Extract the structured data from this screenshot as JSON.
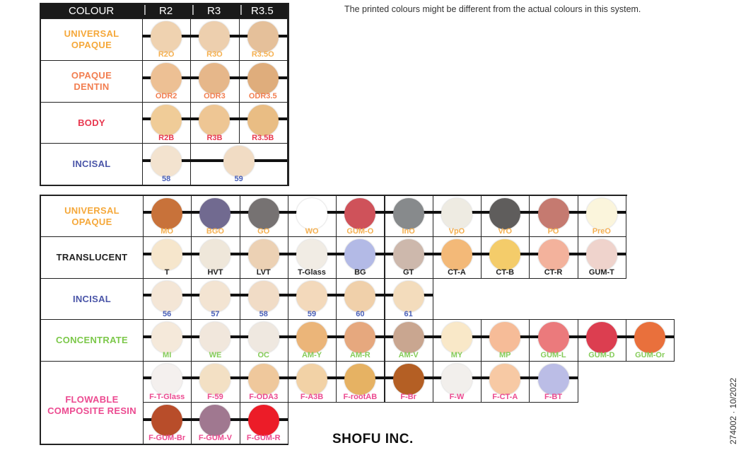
{
  "notice": "The printed colours might be different from the actual colours in this system.",
  "company": "SHOFU INC.",
  "doc_code": "274002 · 10/2022",
  "top_table": {
    "header": {
      "colour": "COLOUR",
      "cols": [
        "R2",
        "R3",
        "R3.5"
      ]
    },
    "rows": [
      {
        "label": "UNIVERSAL\nOPAQUE",
        "label_color": "#f5a83a",
        "code_color": "#f5b050",
        "swatches": [
          {
            "code": "R2O",
            "color": "#efd2b0"
          },
          {
            "code": "R3O",
            "color": "#edcfae"
          },
          {
            "code": "R3.5O",
            "color": "#e5c09a"
          }
        ]
      },
      {
        "label": "OPAQUE\nDENTIN",
        "label_color": "#f27e50",
        "code_color": "#f27e50",
        "swatches": [
          {
            "code": "ODR2",
            "color": "#edc094"
          },
          {
            "code": "ODR3",
            "color": "#e6b78a"
          },
          {
            "code": "ODR3.5",
            "color": "#dfad7c"
          }
        ]
      },
      {
        "label": "BODY",
        "label_color": "#e8384f",
        "code_color": "#e8384f",
        "swatches": [
          {
            "code": "R2B",
            "color": "#f0cc98"
          },
          {
            "code": "R3B",
            "color": "#eec694"
          },
          {
            "code": "R3.5B",
            "color": "#e9bd84"
          }
        ]
      },
      {
        "label": "INCISAL",
        "label_color": "#4a55a8",
        "code_color": "#4a60b8",
        "swatches": [
          {
            "code": "58",
            "color": "#f3e3cf"
          },
          {
            "code": "59",
            "color": "#f1dcc4"
          }
        ]
      }
    ]
  },
  "bottom_table": {
    "rows": [
      {
        "label": "UNIVERSAL\nOPAQUE",
        "label_color": "#f5a83a",
        "code_color": "#f5b050",
        "swatches": [
          {
            "code": "MO",
            "color": "#c8723a"
          },
          {
            "code": "BGO",
            "color": "#716a90"
          },
          {
            "code": "GO",
            "color": "#767272"
          },
          {
            "code": "WO",
            "color": "#ffffff"
          },
          {
            "code": "GUM-O",
            "color": "#cf525a"
          },
          {
            "code": "InO",
            "color": "#878a8c"
          },
          {
            "code": "VpO",
            "color": "#eeebe2"
          },
          {
            "code": "VrO",
            "color": "#5f5d5c"
          },
          {
            "code": "PO",
            "color": "#c57a70"
          },
          {
            "code": "PreO",
            "color": "#fbf5dc"
          }
        ]
      },
      {
        "label": "TRANSLUCENT",
        "label_color": "#222222",
        "code_color": "#222222",
        "swatches": [
          {
            "code": "T",
            "color": "#f6e6cc"
          },
          {
            "code": "HVT",
            "color": "#efe7da"
          },
          {
            "code": "LVT",
            "color": "#ecd1b4"
          },
          {
            "code": "T-Glass",
            "color": "#f1ece4"
          },
          {
            "code": "BG",
            "color": "#b3bae6"
          },
          {
            "code": "GT",
            "color": "#cdb8ac"
          },
          {
            "code": "CT-A",
            "color": "#f3b978"
          },
          {
            "code": "CT-B",
            "color": "#f4cc6a"
          },
          {
            "code": "CT-R",
            "color": "#f3b29c"
          },
          {
            "code": "GUM-T",
            "color": "#efd3cc"
          }
        ]
      },
      {
        "label": "INCISAL",
        "label_color": "#4a55a8",
        "code_color": "#4a60b8",
        "swatches": [
          {
            "code": "56",
            "color": "#f4e6d6"
          },
          {
            "code": "57",
            "color": "#f3e4d2"
          },
          {
            "code": "58",
            "color": "#f1dcc6"
          },
          {
            "code": "59",
            "color": "#f3d9bb"
          },
          {
            "code": "60",
            "color": "#f0d0aa"
          },
          {
            "code": "61",
            "color": "#f3dcbc"
          }
        ]
      },
      {
        "label": "CONCENTRATE",
        "label_color": "#7cc84a",
        "code_color": "#86cc5a",
        "swatches": [
          {
            "code": "MI",
            "color": "#f5e9da"
          },
          {
            "code": "WE",
            "color": "#f1e7dc"
          },
          {
            "code": "OC",
            "color": "#efe8e0"
          },
          {
            "code": "AM-Y",
            "color": "#ebb579"
          },
          {
            "code": "AM-R",
            "color": "#e6a87e"
          },
          {
            "code": "AM-V",
            "color": "#c9a690"
          },
          {
            "code": "MY",
            "color": "#f9e8c8"
          },
          {
            "code": "MP",
            "color": "#f6bc98"
          },
          {
            "code": "GUM-L",
            "color": "#eb7a7c"
          },
          {
            "code": "GUM-D",
            "color": "#dc3e50"
          },
          {
            "code": "GUM-Or",
            "color": "#e9703c"
          }
        ]
      },
      {
        "label": "FLOWABLE\nCOMPOSITE RESIN",
        "label_color": "#ec4a90",
        "code_color": "#ec4a90",
        "swatches": [
          {
            "code": "F-T-Glass",
            "color": "#f4f0ee"
          },
          {
            "code": "F-59",
            "color": "#f3e0c4"
          },
          {
            "code": "F-ODA3",
            "color": "#efc89c"
          },
          {
            "code": "F-A3B",
            "color": "#f2d2a6"
          },
          {
            "code": "F-rootAB",
            "color": "#e6b263"
          },
          {
            "code": "F-Br",
            "color": "#b45f24"
          },
          {
            "code": "F-W",
            "color": "#f2efec"
          },
          {
            "code": "F-CT-A",
            "color": "#f7c9a4"
          },
          {
            "code": "F-BT",
            "color": "#bbbde6"
          }
        ]
      },
      {
        "label": "",
        "label_color": "#ec4a90",
        "code_color": "#ec4a90",
        "swatches": [
          {
            "code": "F-GUM-Br",
            "color": "#b84d2a"
          },
          {
            "code": "F-GUM-V",
            "color": "#a07890"
          },
          {
            "code": "F-GUM-R",
            "color": "#ec1c28"
          }
        ]
      }
    ]
  }
}
